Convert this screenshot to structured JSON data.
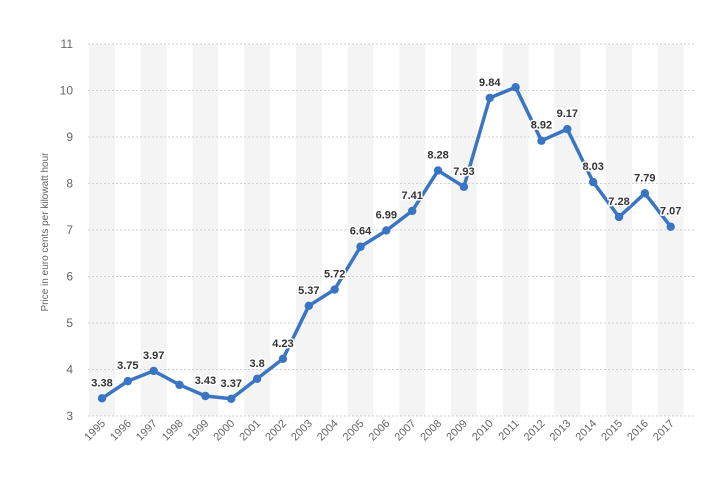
{
  "chart_data": {
    "type": "line",
    "ylabel": "Price in euro cents per kilowatt hour",
    "xlabel": "",
    "ylim": [
      3,
      11
    ],
    "yticks": [
      "3",
      "4",
      "5",
      "6",
      "7",
      "8",
      "9",
      "10",
      "11"
    ],
    "grid": true,
    "legend": "none",
    "colors": {
      "line": "#3a75c4",
      "band": "#f4f4f4",
      "grid": "#d0d0d0"
    },
    "categories": [
      "1995",
      "1996",
      "1997",
      "1998",
      "1999",
      "2000",
      "2001",
      "2002",
      "2003",
      "2004",
      "2005",
      "2006",
      "2007",
      "2008",
      "2009",
      "2010",
      "2011",
      "2012",
      "2013",
      "2014",
      "2015",
      "2016",
      "2017"
    ],
    "values": [
      3.38,
      3.75,
      3.97,
      3.67,
      3.43,
      3.37,
      3.8,
      4.23,
      5.37,
      5.72,
      6.64,
      6.99,
      7.41,
      8.28,
      7.93,
      9.84,
      10.07,
      8.92,
      9.17,
      8.03,
      7.28,
      7.79,
      7.07
    ],
    "data_labels": [
      "3.38",
      "3.75",
      "3.97",
      "",
      "3.43",
      "3.37",
      "3.8",
      "4.23",
      "5.37",
      "5.72",
      "6.64",
      "6.99",
      "7.41",
      "8.28",
      "7.93",
      "9.84",
      "",
      "8.92",
      "9.17",
      "8.03",
      "7.28",
      "7.79",
      "7.07"
    ]
  }
}
